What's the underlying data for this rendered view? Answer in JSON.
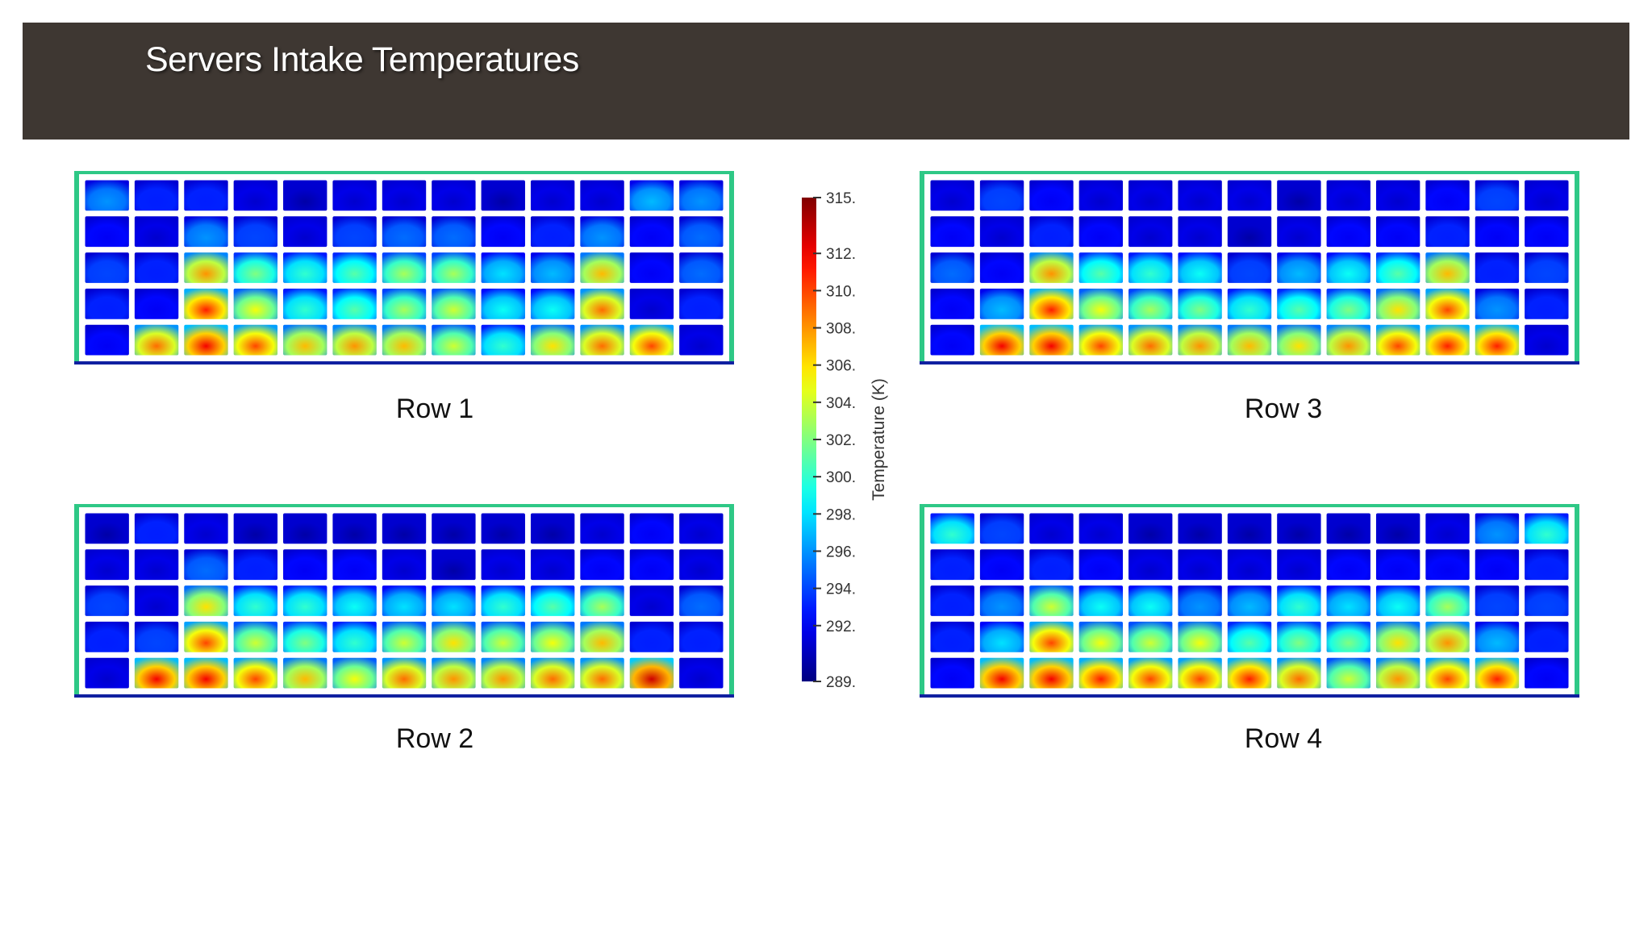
{
  "title": "Servers Intake Temperatures",
  "colors": {
    "header_bg": "#3e3732",
    "frame_green": "#2ec886",
    "frame_base": "#1020a0",
    "cell_gap": "#ffffff"
  },
  "chart_data": {
    "type": "heatmap",
    "colormap": "jet",
    "colorbar": {
      "title": "Temperature (K)",
      "range": [
        289,
        315
      ],
      "tick_labels": [
        "315.",
        "312.",
        "310.",
        "308.",
        "306.",
        "304.",
        "302.",
        "300.",
        "298.",
        "296.",
        "294.",
        "292.",
        "289."
      ],
      "tick_values": [
        315,
        312,
        310,
        308,
        306,
        304,
        302,
        300,
        298,
        296,
        294,
        292,
        289
      ]
    },
    "panels": [
      {
        "label": "Row 1",
        "columns": 13,
        "rows": 5,
        "values": [
          [
            296,
            293,
            293,
            291,
            290,
            291,
            291,
            291,
            290,
            291,
            291,
            297,
            296
          ],
          [
            292,
            291,
            296,
            294,
            291,
            294,
            295,
            295,
            292,
            293,
            296,
            292,
            295
          ],
          [
            294,
            293,
            308,
            302,
            300,
            301,
            303,
            303,
            298,
            297,
            307,
            292,
            295
          ],
          [
            293,
            292,
            311,
            305,
            300,
            301,
            303,
            304,
            299,
            299,
            309,
            291,
            293
          ],
          [
            292,
            309,
            312,
            310,
            307,
            308,
            307,
            304,
            300,
            306,
            309,
            310,
            291
          ]
        ]
      },
      {
        "label": "Row 2",
        "columns": 13,
        "rows": 5,
        "values": [
          [
            290,
            293,
            291,
            290,
            290,
            290,
            290,
            290,
            290,
            290,
            291,
            292,
            291
          ],
          [
            291,
            291,
            295,
            293,
            292,
            292,
            291,
            290,
            291,
            291,
            292,
            292,
            291
          ],
          [
            294,
            291,
            306,
            300,
            300,
            299,
            298,
            298,
            300,
            301,
            303,
            291,
            295
          ],
          [
            293,
            294,
            310,
            304,
            302,
            300,
            304,
            306,
            304,
            305,
            307,
            293,
            293
          ],
          [
            291,
            312,
            312,
            310,
            307,
            305,
            309,
            308,
            308,
            309,
            309,
            313,
            291
          ]
        ]
      },
      {
        "label": "Row 3",
        "columns": 13,
        "rows": 5,
        "values": [
          [
            291,
            294,
            292,
            291,
            291,
            291,
            291,
            290,
            291,
            291,
            292,
            294,
            291
          ],
          [
            292,
            291,
            293,
            292,
            291,
            291,
            290,
            291,
            292,
            292,
            293,
            292,
            292
          ],
          [
            295,
            292,
            308,
            301,
            300,
            299,
            294,
            297,
            299,
            301,
            307,
            293,
            294
          ],
          [
            292,
            297,
            311,
            305,
            303,
            302,
            300,
            301,
            302,
            306,
            310,
            296,
            293
          ],
          [
            292,
            312,
            312,
            310,
            309,
            308,
            307,
            306,
            308,
            310,
            311,
            311,
            291
          ]
        ]
      },
      {
        "label": "Row 4",
        "columns": 13,
        "rows": 5,
        "values": [
          [
            300,
            294,
            291,
            291,
            290,
            290,
            290,
            290,
            290,
            290,
            291,
            296,
            300
          ],
          [
            293,
            292,
            293,
            292,
            291,
            291,
            291,
            291,
            292,
            292,
            292,
            292,
            293
          ],
          [
            293,
            296,
            304,
            299,
            299,
            296,
            297,
            300,
            298,
            299,
            303,
            294,
            294
          ],
          [
            293,
            298,
            310,
            305,
            304,
            305,
            301,
            302,
            302,
            306,
            308,
            297,
            293
          ],
          [
            292,
            312,
            312,
            311,
            310,
            310,
            311,
            309,
            304,
            308,
            310,
            311,
            292
          ]
        ]
      }
    ]
  }
}
